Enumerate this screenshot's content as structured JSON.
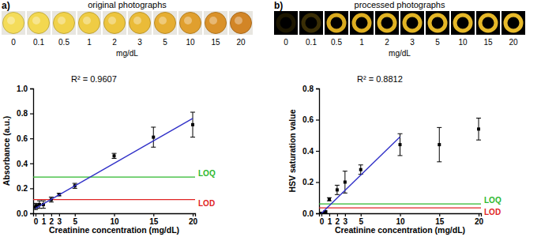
{
  "chart_data": [
    {
      "type": "scatter",
      "panel_label": "a)",
      "photos": {
        "title": "original photographs",
        "labels": [
          0,
          0.1,
          0.5,
          1,
          2,
          3,
          5,
          10,
          15,
          20
        ],
        "unit": "mg/dL",
        "colors": [
          "#f4dc5a",
          "#f3d850",
          "#f1d24a",
          "#efcc44",
          "#edc53e",
          "#eabb38",
          "#e6ae32",
          "#e09f2e",
          "#da922a",
          "#d28526"
        ]
      },
      "annotation": "R² = 0.9607",
      "x_label": "Creatinine concentration (mg/dL)",
      "y_label": "Absorbance (a.u.)",
      "x": [
        0,
        0.1,
        0.5,
        1,
        2,
        3,
        5,
        10,
        15,
        20
      ],
      "xlim": [
        -0.3,
        20.3
      ],
      "xticks": [
        0,
        1,
        2,
        3,
        5,
        10,
        15,
        20
      ],
      "ylim": [
        0,
        1
      ],
      "yticks": [
        {
          "value": 0,
          "label": "0.0"
        },
        0.2,
        0.4,
        0.6,
        0.8,
        {
          "value": 1,
          "label": "1.0"
        }
      ],
      "series": [
        {
          "type": "scatter",
          "marker": "square",
          "color": "#000000",
          "values": [
            0.05,
            0.06,
            0.07,
            0.07,
            0.11,
            0.15,
            0.22,
            0.46,
            0.61,
            0.71
          ],
          "errors": [
            0.02,
            0.02,
            0.03,
            0.03,
            0.02,
            0.01,
            0.02,
            0.02,
            0.08,
            0.1
          ]
        },
        {
          "type": "line",
          "color": "#3030c8",
          "x": [
            0,
            20
          ],
          "values": [
            0.04,
            0.76
          ]
        }
      ],
      "reference_lines": [
        {
          "label": "LOQ",
          "value": 0.29,
          "color": "#2db82d"
        },
        {
          "label": "LOD",
          "value": 0.11,
          "color": "#e02424"
        }
      ]
    },
    {
      "type": "scatter",
      "panel_label": "b)",
      "photos": {
        "title": "processed photographs",
        "labels": [
          0,
          0.1,
          0.5,
          1,
          2,
          3,
          5,
          10,
          15,
          20
        ],
        "unit": "mg/dL",
        "colors": [
          "#1c1600",
          "#3a2e06",
          "#d9aa1e",
          "#deae20",
          "#e0b222",
          "#e2b424",
          "#e4b626",
          "#e6b828",
          "#e6b828",
          "#e8ba2a"
        ]
      },
      "annotation": "R² = 0.8812",
      "x_label": "Creatinine concentration (mg/dL)",
      "y_label": "HSV saturation value",
      "x": [
        0,
        0.1,
        0.5,
        1,
        2,
        3,
        5,
        10,
        15,
        20
      ],
      "xlim": [
        -0.3,
        20.3
      ],
      "xticks": [
        0,
        1,
        2,
        3,
        5,
        10,
        15,
        20
      ],
      "ylim": [
        0,
        0.8
      ],
      "yticks": [
        {
          "value": 0,
          "label": "0.0"
        },
        0.2,
        0.4,
        0.6,
        0.8
      ],
      "series": [
        {
          "type": "scatter",
          "marker": "square",
          "color": "#000000",
          "values": [
            0.0,
            0.0,
            0.01,
            0.09,
            0.15,
            0.2,
            0.28,
            0.44,
            0.44,
            0.54
          ],
          "errors": [
            0.005,
            0.005,
            0.005,
            0.01,
            0.03,
            0.07,
            0.03,
            0.07,
            0.11,
            0.07
          ]
        },
        {
          "type": "line",
          "color": "#3030c8",
          "x": [
            0,
            10
          ],
          "values": [
            0.0,
            0.49
          ]
        }
      ],
      "reference_lines": [
        {
          "label": "LOQ",
          "value": 0.06,
          "color": "#2db82d"
        },
        {
          "label": "LOD",
          "value": 0.035,
          "color": "#e02424"
        }
      ]
    }
  ]
}
